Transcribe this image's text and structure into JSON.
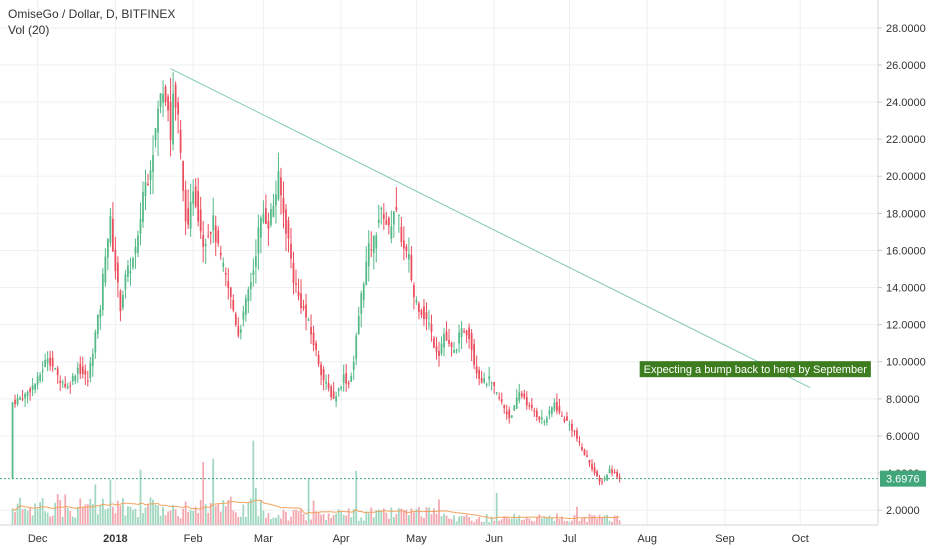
{
  "header": {
    "title": "OmiseGo / Dollar, D, BITFINEX",
    "volume_label": "Vol (20)"
  },
  "colors": {
    "up": "#53b987",
    "down": "#eb4d5c",
    "vol_up": "#9fd7c0",
    "vol_down": "#f3a8b0",
    "trendline": "#7ec8b4",
    "vol_ma": "#f2a35e",
    "annotation_bg": "#3d7d1f",
    "price_label_bg": "#41a77b",
    "grid": "#eef0f3"
  },
  "annotation": {
    "text": "Expecting a bump back to here by September"
  },
  "last_price_label": "3.6976",
  "chart_data": {
    "type": "candlestick",
    "title": "OmiseGo / Dollar, D, BITFINEX",
    "y_ticks": [
      "2.0000",
      "4.0000",
      "6.0000",
      "8.0000",
      "10.0000",
      "12.0000",
      "14.0000",
      "16.0000",
      "18.0000",
      "20.0000",
      "22.0000",
      "24.0000",
      "26.0000",
      "28.0000"
    ],
    "ylim": [
      1.2,
      29.5
    ],
    "x_ticks": [
      {
        "label": "Dec",
        "bold": false
      },
      {
        "label": "2018",
        "bold": true
      },
      {
        "label": "Feb",
        "bold": false
      },
      {
        "label": "Mar",
        "bold": false
      },
      {
        "label": "Apr",
        "bold": false
      },
      {
        "label": "May",
        "bold": false
      },
      {
        "label": "Jun",
        "bold": false
      },
      {
        "label": "Jul",
        "bold": false
      },
      {
        "label": "Aug",
        "bold": false
      },
      {
        "label": "Sep",
        "bold": false
      },
      {
        "label": "Oct",
        "bold": false
      }
    ],
    "close_path": [
      [
        0,
        7.8
      ],
      [
        5,
        8.2
      ],
      [
        10,
        9.0
      ],
      [
        14,
        10.3
      ],
      [
        18,
        9.2
      ],
      [
        22,
        8.6
      ],
      [
        26,
        9.7
      ],
      [
        30,
        9.0
      ],
      [
        33,
        11.5
      ],
      [
        35,
        13.0
      ],
      [
        37,
        16.0
      ],
      [
        39,
        17.5
      ],
      [
        41,
        15.0
      ],
      [
        43,
        13.0
      ],
      [
        45,
        14.5
      ],
      [
        48,
        15.5
      ],
      [
        50,
        16.5
      ],
      [
        52,
        19.2
      ],
      [
        54,
        20.0
      ],
      [
        56,
        21.5
      ],
      [
        58,
        23.5
      ],
      [
        60,
        25.0
      ],
      [
        62,
        24.0
      ],
      [
        63,
        22.0
      ],
      [
        64,
        24.5
      ],
      [
        66,
        23.0
      ],
      [
        68,
        19.0
      ],
      [
        70,
        17.0
      ],
      [
        72,
        19.5
      ],
      [
        74,
        18.0
      ],
      [
        76,
        16.5
      ],
      [
        80,
        17.5
      ],
      [
        82,
        16.0
      ],
      [
        85,
        14.5
      ],
      [
        88,
        12.8
      ],
      [
        90,
        11.5
      ],
      [
        92,
        12.5
      ],
      [
        94,
        13.8
      ],
      [
        96,
        15.0
      ],
      [
        98,
        17.0
      ],
      [
        100,
        18.0
      ],
      [
        102,
        17.5
      ],
      [
        104,
        18.5
      ],
      [
        106,
        19.8
      ],
      [
        108,
        18.0
      ],
      [
        110,
        16.5
      ],
      [
        112,
        14.5
      ],
      [
        114,
        13.5
      ],
      [
        116,
        12.8
      ],
      [
        118,
        12.0
      ],
      [
        120,
        11.0
      ],
      [
        122,
        10.0
      ],
      [
        124,
        9.0
      ],
      [
        126,
        8.5
      ],
      [
        128,
        8.0
      ],
      [
        130,
        8.5
      ],
      [
        132,
        9.2
      ],
      [
        134,
        8.8
      ],
      [
        136,
        10.0
      ],
      [
        138,
        12.5
      ],
      [
        140,
        14.5
      ],
      [
        142,
        16.0
      ],
      [
        144,
        16.5
      ],
      [
        146,
        17.8
      ],
      [
        148,
        18.0
      ],
      [
        150,
        17.0
      ],
      [
        152,
        18.3
      ],
      [
        154,
        17.5
      ],
      [
        156,
        16.0
      ],
      [
        158,
        15.5
      ],
      [
        160,
        13.5
      ],
      [
        162,
        13.0
      ],
      [
        164,
        12.5
      ],
      [
        166,
        12.0
      ],
      [
        168,
        11.0
      ],
      [
        170,
        10.5
      ],
      [
        172,
        11.5
      ],
      [
        174,
        10.8
      ],
      [
        176,
        10.5
      ],
      [
        178,
        11.3
      ],
      [
        180,
        11.8
      ],
      [
        182,
        11.5
      ],
      [
        184,
        10.0
      ],
      [
        186,
        9.2
      ],
      [
        188,
        8.9
      ],
      [
        190,
        9.0
      ],
      [
        192,
        8.5
      ],
      [
        194,
        8.0
      ],
      [
        196,
        7.5
      ],
      [
        198,
        7.0
      ],
      [
        200,
        7.5
      ],
      [
        202,
        8.3
      ],
      [
        204,
        8.1
      ],
      [
        206,
        7.5
      ],
      [
        208,
        7.3
      ],
      [
        210,
        7.0
      ],
      [
        212,
        6.8
      ],
      [
        214,
        7.2
      ],
      [
        216,
        7.8
      ],
      [
        218,
        7.2
      ],
      [
        220,
        6.9
      ],
      [
        222,
        6.6
      ],
      [
        224,
        6.2
      ],
      [
        226,
        5.5
      ],
      [
        228,
        5.0
      ],
      [
        230,
        4.6
      ],
      [
        232,
        4.0
      ],
      [
        234,
        3.5
      ],
      [
        236,
        3.7
      ],
      [
        238,
        4.2
      ],
      [
        240,
        4.0
      ],
      [
        242,
        3.7
      ]
    ],
    "trendline": {
      "from": [
        63,
        25.8
      ],
      "to": [
        318,
        8.6
      ]
    },
    "annotation_position": {
      "x": 250,
      "y": 9.6
    }
  }
}
